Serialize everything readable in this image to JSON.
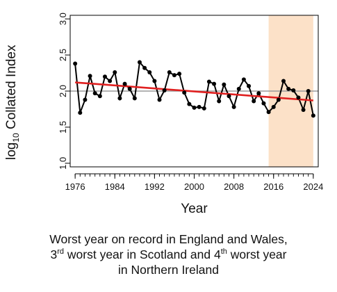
{
  "chart_data": {
    "type": "line",
    "xlabel": "Year",
    "ylabel_prefix": "log",
    "ylabel_sub": "10",
    "ylabel_suffix": " Collated Index",
    "xlim": [
      1975,
      2025
    ],
    "ylim": [
      0.95,
      3.05
    ],
    "xticks": [
      1976,
      1984,
      1992,
      2000,
      2008,
      2016,
      2024
    ],
    "yticks": [
      1.0,
      1.5,
      2.0,
      2.5,
      3.0
    ],
    "ytick_labels": [
      "1.0",
      "1.5",
      "2.0",
      "2.5",
      "3.0"
    ],
    "reference_line_y": 2.0,
    "highlight_range": [
      2015,
      2024
    ],
    "highlight_color": "#fce1c8",
    "series_color": "#000000",
    "trend_color": "#e02020",
    "x": [
      1976,
      1977,
      1978,
      1979,
      1980,
      1981,
      1982,
      1983,
      1984,
      1985,
      1986,
      1987,
      1988,
      1989,
      1990,
      1991,
      1992,
      1993,
      1994,
      1995,
      1996,
      1997,
      1998,
      1999,
      2000,
      2001,
      2002,
      2003,
      2004,
      2005,
      2006,
      2007,
      2008,
      2009,
      2010,
      2011,
      2012,
      2013,
      2014,
      2015,
      2016,
      2017,
      2018,
      2019,
      2020,
      2021,
      2022,
      2023,
      2024
    ],
    "values": [
      2.38,
      1.7,
      1.88,
      2.21,
      1.97,
      1.93,
      2.2,
      2.14,
      2.26,
      1.9,
      2.1,
      2.03,
      1.9,
      2.4,
      2.32,
      2.26,
      2.14,
      1.88,
      2.01,
      2.26,
      2.22,
      2.24,
      1.98,
      1.82,
      1.77,
      1.78,
      1.76,
      2.13,
      2.1,
      1.86,
      2.09,
      1.93,
      1.78,
      2.03,
      2.16,
      2.07,
      1.86,
      1.97,
      1.83,
      1.71,
      1.78,
      1.88,
      2.14,
      2.03,
      2.01,
      1.91,
      1.74,
      2.0,
      1.66
    ],
    "trend": [
      [
        1976,
        2.12
      ],
      [
        2024,
        1.87
      ]
    ]
  },
  "caption": {
    "line1": "Worst year on record in England and Wales,",
    "line2_num": "3",
    "line2_sup": "rd",
    "line2_mid": " worst year in Scotland and 4",
    "line2_sup2": "th",
    "line2_end": " worst year",
    "line3": "in Northern Ireland"
  }
}
